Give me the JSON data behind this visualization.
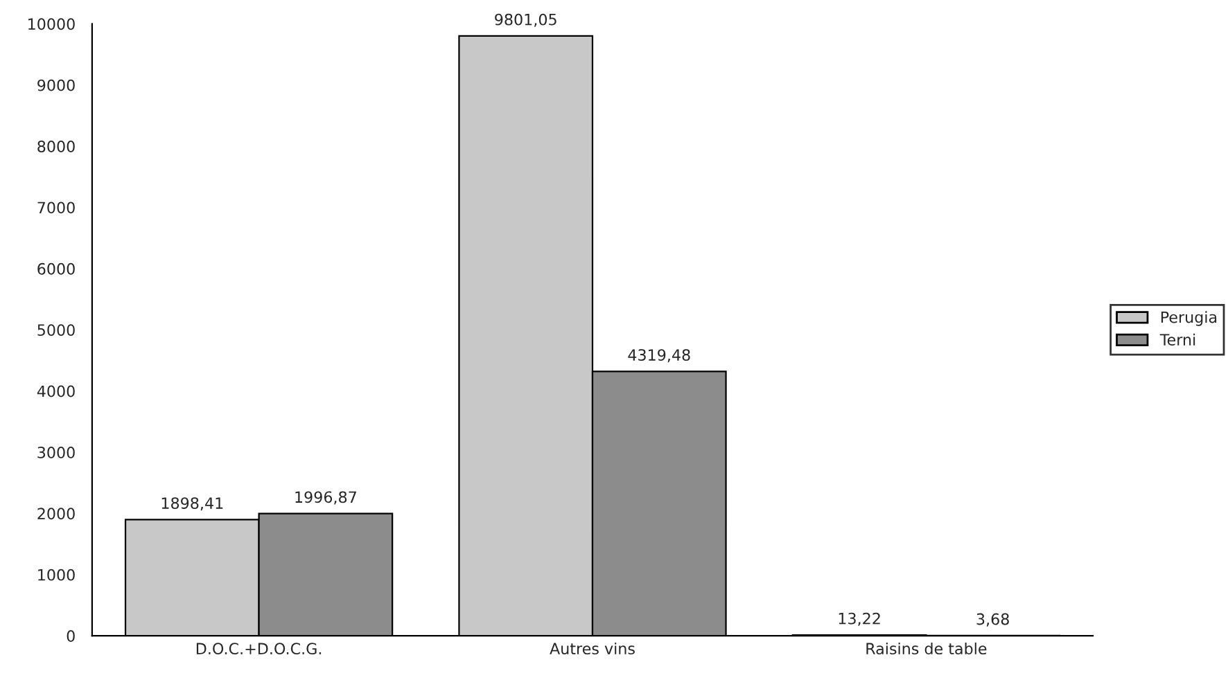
{
  "chart_data": {
    "type": "bar",
    "categories": [
      "D.O.C.+D.O.C.G.",
      "Autres vins",
      "Raisins de table"
    ],
    "series": [
      {
        "name": "Perugia",
        "color": "#c8c8c8",
        "values": [
          1898.41,
          9801.05,
          13.22
        ],
        "value_labels": [
          "1898,41",
          "9801,05",
          "13,22"
        ]
      },
      {
        "name": "Terni",
        "color": "#8c8c8c",
        "values": [
          1996.87,
          4319.48,
          3.68
        ],
        "value_labels": [
          "1996,87",
          "4319,48",
          "3,68"
        ]
      }
    ],
    "ylim": [
      0,
      10000
    ],
    "yticks": [
      0,
      1000,
      2000,
      3000,
      4000,
      5000,
      6000,
      7000,
      8000,
      9000,
      10000
    ],
    "grid": false,
    "legend": "right"
  }
}
